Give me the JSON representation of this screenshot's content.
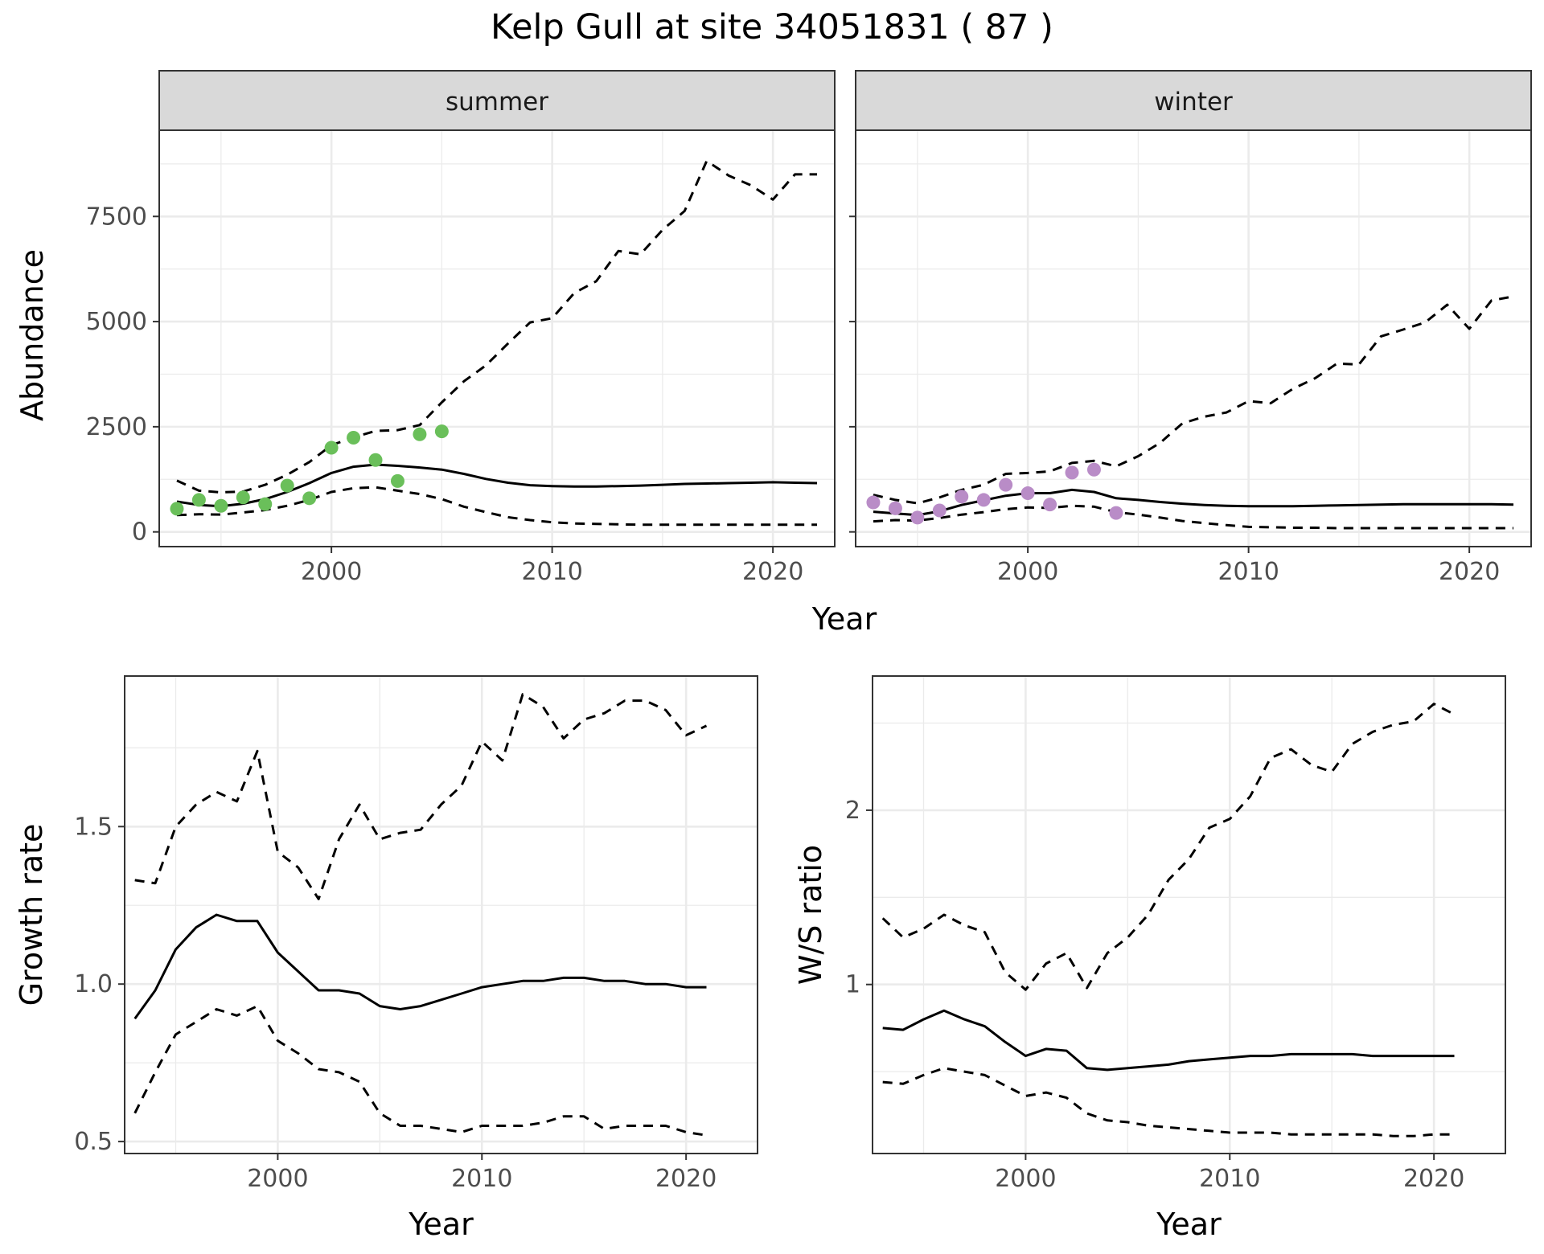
{
  "title": "Kelp Gull at site 34051831 ( 87 )",
  "colors": {
    "summer_points": "#6ABF5A",
    "winter_points": "#B98CC7",
    "line": "#000000",
    "grid": "#EBEBEB",
    "strip_fill": "#D9D9D9"
  },
  "chart_data": [
    {
      "type": "line",
      "panel": "summer",
      "facet_label": "summer",
      "xlabel": "Year",
      "ylabel": "Abundance",
      "xlim": [
        1992.2,
        2022.8
      ],
      "ylim": [
        -350,
        9550
      ],
      "x_ticks": [
        2000,
        2010,
        2020
      ],
      "y_ticks": [
        0,
        2500,
        5000,
        7500
      ],
      "grid": true,
      "x": [
        1993,
        1994,
        1995,
        1996,
        1997,
        1998,
        1999,
        2000,
        2001,
        2002,
        2003,
        2004,
        2005,
        2006,
        2007,
        2008,
        2009,
        2010,
        2011,
        2012,
        2013,
        2014,
        2015,
        2016,
        2017,
        2018,
        2019,
        2020,
        2021,
        2022
      ],
      "series": [
        {
          "role": "upper",
          "style": "dashed",
          "values": [
            1220,
            980,
            940,
            960,
            1120,
            1360,
            1660,
            2060,
            2250,
            2400,
            2420,
            2540,
            3080,
            3580,
            3960,
            4480,
            4980,
            5080,
            5680,
            5960,
            6680,
            6600,
            7180,
            7630,
            8820,
            8470,
            8240,
            7900,
            8500,
            8500
          ]
        },
        {
          "role": "estimate",
          "style": "solid",
          "values": [
            720,
            640,
            610,
            670,
            780,
            950,
            1160,
            1400,
            1550,
            1600,
            1570,
            1530,
            1480,
            1380,
            1260,
            1170,
            1110,
            1090,
            1080,
            1080,
            1090,
            1100,
            1120,
            1140,
            1150,
            1160,
            1170,
            1180,
            1170,
            1160
          ]
        },
        {
          "role": "lower",
          "style": "dashed",
          "values": [
            400,
            420,
            410,
            460,
            520,
            620,
            760,
            950,
            1040,
            1060,
            980,
            900,
            780,
            600,
            470,
            350,
            280,
            230,
            200,
            190,
            180,
            170,
            170,
            170,
            170,
            170,
            170,
            170,
            170,
            170
          ]
        }
      ],
      "points": {
        "x": [
          1993,
          1994,
          1995,
          1996,
          1997,
          1998,
          1999,
          2000,
          2001,
          2002,
          2003,
          2004,
          2005
        ],
        "y": [
          550,
          760,
          620,
          820,
          660,
          1100,
          800,
          2000,
          2240,
          1710,
          1210,
          2320,
          2390
        ]
      }
    },
    {
      "type": "line",
      "panel": "winter",
      "facet_label": "winter",
      "xlabel": "Year",
      "ylabel": "Abundance",
      "xlim": [
        1992.2,
        2022.8
      ],
      "ylim": [
        -350,
        9550
      ],
      "x_ticks": [
        2000,
        2010,
        2020
      ],
      "y_ticks": [
        0,
        2500,
        5000,
        7500
      ],
      "grid": true,
      "x": [
        1993,
        1994,
        1995,
        1996,
        1997,
        1998,
        1999,
        2000,
        2001,
        2002,
        2003,
        2004,
        2005,
        2006,
        2007,
        2008,
        2009,
        2010,
        2011,
        2012,
        2013,
        2014,
        2015,
        2016,
        2017,
        2018,
        2019,
        2020,
        2021,
        2022
      ],
      "series": [
        {
          "role": "upper",
          "style": "dashed",
          "values": [
            880,
            760,
            680,
            820,
            1000,
            1120,
            1380,
            1400,
            1440,
            1640,
            1690,
            1560,
            1800,
            2120,
            2580,
            2740,
            2840,
            3110,
            3060,
            3400,
            3650,
            4000,
            3980,
            4650,
            4810,
            4980,
            5400,
            4830,
            5500,
            5600
          ]
        },
        {
          "role": "estimate",
          "style": "solid",
          "values": [
            480,
            440,
            400,
            490,
            640,
            750,
            860,
            920,
            920,
            1000,
            950,
            800,
            760,
            710,
            670,
            640,
            620,
            610,
            610,
            610,
            620,
            630,
            640,
            650,
            660,
            660,
            660,
            660,
            660,
            650
          ]
        },
        {
          "role": "lower",
          "style": "dashed",
          "values": [
            250,
            280,
            270,
            330,
            410,
            470,
            540,
            580,
            570,
            620,
            600,
            470,
            410,
            340,
            260,
            210,
            160,
            120,
            110,
            100,
            100,
            90,
            90,
            90,
            90,
            90,
            90,
            90,
            90,
            90
          ]
        }
      ],
      "points": {
        "x": [
          1993,
          1994,
          1995,
          1996,
          1997,
          1998,
          1999,
          2000,
          2001,
          2002,
          2003,
          2004
        ],
        "y": [
          700,
          560,
          340,
          510,
          840,
          760,
          1120,
          920,
          650,
          1410,
          1480,
          450
        ]
      }
    },
    {
      "type": "line",
      "panel": "growth",
      "xlabel": "Year",
      "ylabel": "Growth rate",
      "xlim": [
        1992.5,
        2023.5
      ],
      "ylim": [
        0.462,
        1.978
      ],
      "x_ticks": [
        2000,
        2010,
        2020
      ],
      "y_ticks": [
        0.5,
        1.0,
        1.5
      ],
      "y_tick_labels": [
        "0.5",
        "1.0",
        "1.5"
      ],
      "grid": true,
      "x": [
        1993,
        1994,
        1995,
        1996,
        1997,
        1998,
        1999,
        2000,
        2001,
        2002,
        2003,
        2004,
        2005,
        2006,
        2007,
        2008,
        2009,
        2010,
        2011,
        2012,
        2013,
        2014,
        2015,
        2016,
        2017,
        2018,
        2019,
        2020,
        2021
      ],
      "series": [
        {
          "role": "upper",
          "style": "dashed",
          "values": [
            1.33,
            1.32,
            1.5,
            1.57,
            1.61,
            1.58,
            1.74,
            1.42,
            1.37,
            1.27,
            1.46,
            1.57,
            1.46,
            1.48,
            1.49,
            1.57,
            1.63,
            1.77,
            1.71,
            1.92,
            1.88,
            1.78,
            1.84,
            1.86,
            1.9,
            1.9,
            1.87,
            1.79,
            1.82
          ]
        },
        {
          "role": "estimate",
          "style": "solid",
          "values": [
            0.89,
            0.98,
            1.11,
            1.18,
            1.22,
            1.2,
            1.2,
            1.1,
            1.04,
            0.98,
            0.98,
            0.97,
            0.93,
            0.92,
            0.93,
            0.95,
            0.97,
            0.99,
            1.0,
            1.01,
            1.01,
            1.02,
            1.02,
            1.01,
            1.01,
            1.0,
            1.0,
            0.99,
            0.99
          ]
        },
        {
          "role": "lower",
          "style": "dashed",
          "values": [
            0.59,
            0.72,
            0.84,
            0.88,
            0.92,
            0.9,
            0.93,
            0.82,
            0.78,
            0.73,
            0.72,
            0.69,
            0.59,
            0.55,
            0.55,
            0.54,
            0.53,
            0.55,
            0.55,
            0.55,
            0.56,
            0.58,
            0.58,
            0.54,
            0.55,
            0.55,
            0.55,
            0.53,
            0.52
          ]
        }
      ]
    },
    {
      "type": "line",
      "panel": "ratio",
      "xlabel": "Year",
      "ylabel": "W/S ratio",
      "xlim": [
        1992.5,
        2023.5
      ],
      "ylim": [
        0.03,
        2.77
      ],
      "x_ticks": [
        2000,
        2010,
        2020
      ],
      "y_ticks": [
        1,
        2
      ],
      "y_tick_labels": [
        "1",
        "2"
      ],
      "grid": true,
      "x": [
        1993,
        1994,
        1995,
        1996,
        1997,
        1998,
        1999,
        2000,
        2001,
        2002,
        2003,
        2004,
        2005,
        2006,
        2007,
        2008,
        2009,
        2010,
        2011,
        2012,
        2013,
        2014,
        2015,
        2016,
        2017,
        2018,
        2019,
        2020,
        2021
      ],
      "series": [
        {
          "role": "upper",
          "style": "dashed",
          "values": [
            1.38,
            1.27,
            1.32,
            1.4,
            1.34,
            1.3,
            1.07,
            0.97,
            1.12,
            1.18,
            0.98,
            1.18,
            1.27,
            1.4,
            1.6,
            1.72,
            1.9,
            1.95,
            2.08,
            2.3,
            2.35,
            2.26,
            2.22,
            2.38,
            2.45,
            2.49,
            2.51,
            2.61,
            2.55
          ]
        },
        {
          "role": "estimate",
          "style": "solid",
          "values": [
            0.75,
            0.74,
            0.8,
            0.85,
            0.8,
            0.76,
            0.67,
            0.59,
            0.63,
            0.62,
            0.52,
            0.51,
            0.52,
            0.53,
            0.54,
            0.56,
            0.57,
            0.58,
            0.59,
            0.59,
            0.6,
            0.6,
            0.6,
            0.6,
            0.59,
            0.59,
            0.59,
            0.59,
            0.59
          ]
        },
        {
          "role": "lower",
          "style": "dashed",
          "values": [
            0.44,
            0.43,
            0.48,
            0.52,
            0.5,
            0.48,
            0.42,
            0.36,
            0.38,
            0.35,
            0.26,
            0.22,
            0.21,
            0.19,
            0.18,
            0.17,
            0.16,
            0.15,
            0.15,
            0.15,
            0.14,
            0.14,
            0.14,
            0.14,
            0.14,
            0.13,
            0.13,
            0.14,
            0.14
          ]
        }
      ]
    }
  ]
}
